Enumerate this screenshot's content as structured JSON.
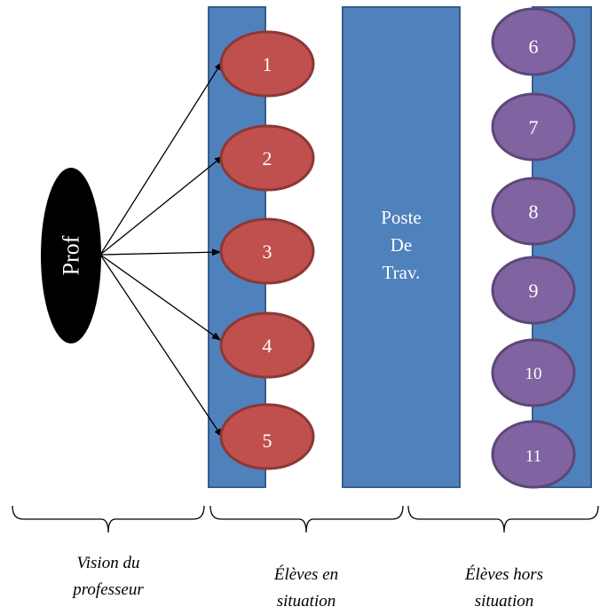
{
  "prof_label": "Prof",
  "poste": {
    "lines": [
      "Poste",
      "De",
      "Trav."
    ]
  },
  "students_in": [
    "1",
    "2",
    "3",
    "4",
    "5"
  ],
  "students_out": [
    "6",
    "7",
    "8",
    "9",
    "10",
    "11"
  ],
  "captions": {
    "vision": [
      "Vision du",
      "professeur"
    ],
    "in_situation": [
      "Élèves en",
      "situation"
    ],
    "out_situation": [
      "Élèves hors",
      "situation"
    ]
  },
  "colors": {
    "bar_fill": "#4f81bd",
    "bar_stroke": "#385d8a",
    "red_fill": "#c0504d",
    "red_stroke": "#8c3836",
    "purple_fill": "#8064a2",
    "purple_stroke": "#5c4776",
    "prof_fill": "#000000"
  }
}
